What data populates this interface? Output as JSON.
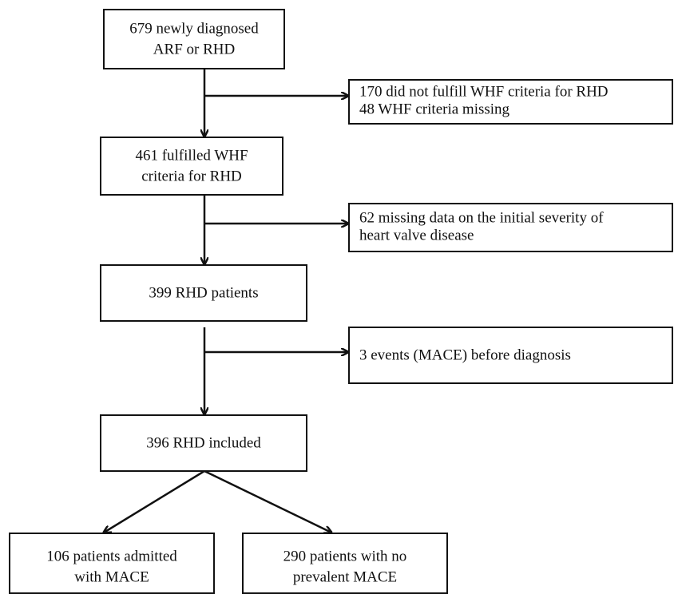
{
  "nodes": [
    {
      "lines": [
        "679 newly diagnosed",
        "ARF or RHD"
      ]
    },
    {
      "lines": [
        "170 did not fulfill WHF criteria for RHD",
        "48 WHF criteria missing"
      ]
    },
    {
      "lines": [
        "461 fulfilled WHF",
        "criteria for RHD"
      ]
    },
    {
      "lines": [
        "62 missing data on the initial severity of",
        "heart valve disease"
      ]
    },
    {
      "lines": [
        "399 RHD patients"
      ]
    },
    {
      "lines": [
        "3 events (MACE) before diagnosis"
      ]
    },
    {
      "lines": [
        "396 RHD included"
      ]
    },
    {
      "lines": [
        "106 patients admitted",
        "with MACE"
      ]
    },
    {
      "lines": [
        "290 patients with no",
        "prevalent MACE"
      ]
    }
  ]
}
